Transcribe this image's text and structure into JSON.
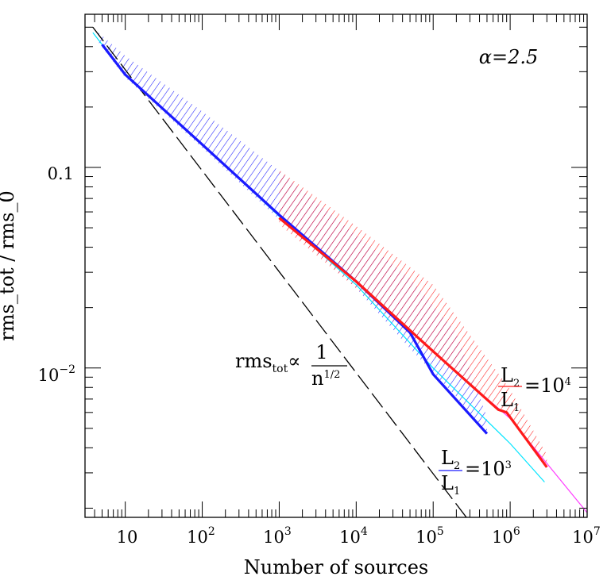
{
  "chart_data": {
    "type": "line",
    "title": "",
    "xlabel": "Number of sources",
    "ylabel": "rms_tot / rms_0",
    "x_scale": "log",
    "y_scale": "log",
    "xlim": [
      3,
      10000000
    ],
    "ylim": [
      0.0018,
      0.58
    ],
    "grid": false,
    "legend": "none",
    "x_ticks": [
      {
        "value": 10,
        "base": "10",
        "exp": ""
      },
      {
        "value": 100,
        "base": "10",
        "exp": "2"
      },
      {
        "value": 1000,
        "base": "10",
        "exp": "3"
      },
      {
        "value": 10000,
        "base": "10",
        "exp": "4"
      },
      {
        "value": 100000,
        "base": "10",
        "exp": "5"
      },
      {
        "value": 1000000,
        "base": "10",
        "exp": "6"
      },
      {
        "value": 10000000,
        "base": "10",
        "exp": "7"
      }
    ],
    "y_ticks": [
      {
        "value": 0.1,
        "base": "0.1",
        "exp": ""
      },
      {
        "value": 0.01,
        "base": "10",
        "exp": "−2"
      }
    ],
    "annotations": {
      "alpha": "α=2.5",
      "law_lhs": "rms",
      "law_sub": "tot",
      "law_prop": "∝",
      "law_num": "1",
      "law_den": "n",
      "law_den_exp": "1/2",
      "red_num": "L",
      "red_num_sub": "2",
      "red_den": "L",
      "red_den_sub": "1",
      "red_rhs": "=10",
      "red_rhs_exp": "4",
      "blue_num": "L",
      "blue_num_sub": "2",
      "blue_den": "L",
      "blue_den_sub": "1",
      "blue_rhs": "=10",
      "blue_rhs_exp": "3"
    },
    "colors": {
      "blue": "#1a1aff",
      "red": "#ff1a1a",
      "cyan": "#00e5ff",
      "magenta": "#ff3cff",
      "black": "#000000"
    },
    "series": [
      {
        "key": "reference",
        "style": "dashed",
        "color": "black",
        "x": [
          3.8,
          270000
        ],
        "y": [
          0.5,
          0.0018
        ]
      },
      {
        "key": "blue_fit",
        "style": "thin",
        "color": "cyan",
        "x": [
          3.8,
          10,
          100,
          1000,
          10000,
          100000,
          1000000,
          2800000
        ],
        "y": [
          0.47,
          0.29,
          0.13,
          0.057,
          0.026,
          0.01,
          0.0042,
          0.0027
        ]
      },
      {
        "key": "red_fit",
        "style": "thin",
        "color": "magenta",
        "x": [
          15000,
          100000,
          1000000,
          10000000
        ],
        "y": [
          0.023,
          0.012,
          0.0056,
          0.0019
        ]
      },
      {
        "key": "blue_mean",
        "style": "thick",
        "color": "blue",
        "x": [
          5,
          10,
          100,
          1000,
          10000,
          50000,
          100000,
          500000
        ],
        "y": [
          0.41,
          0.29,
          0.13,
          0.058,
          0.027,
          0.015,
          0.0093,
          0.0047
        ]
      },
      {
        "key": "red_mean",
        "style": "thick",
        "color": "red",
        "x": [
          1000,
          10000,
          100000,
          700000,
          900000,
          3000000
        ],
        "y": [
          0.056,
          0.027,
          0.0121,
          0.0062,
          0.006,
          0.0032
        ]
      }
    ],
    "bands": [
      {
        "key": "blue_band",
        "color": "blue",
        "x": [
          4.5,
          10,
          100,
          1000,
          10000,
          50000,
          200000,
          500000
        ],
        "low": [
          0.42,
          0.28,
          0.125,
          0.055,
          0.025,
          0.0125,
          0.0072,
          0.0047
        ],
        "high": [
          0.47,
          0.36,
          0.19,
          0.096,
          0.046,
          0.028,
          0.015,
          0.0057
        ]
      },
      {
        "key": "red_band",
        "color": "red",
        "x": [
          1000,
          10000,
          100000,
          1000000,
          3000000
        ],
        "low": [
          0.052,
          0.025,
          0.0115,
          0.0058,
          0.0031
        ],
        "high": [
          0.097,
          0.051,
          0.026,
          0.0078,
          0.0037
        ]
      }
    ]
  }
}
